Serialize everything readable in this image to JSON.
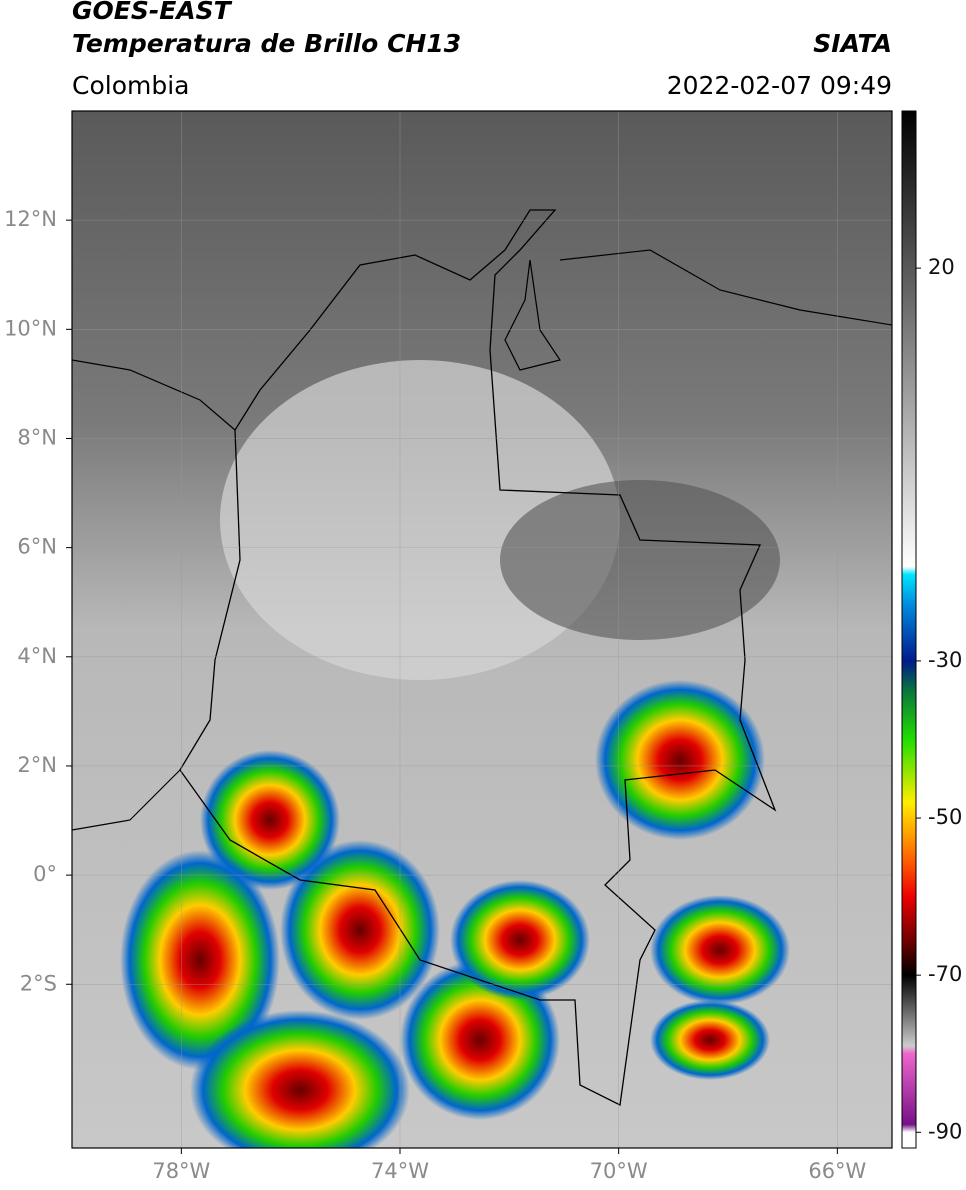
{
  "header": {
    "satellite": "GOES-EAST",
    "product": "Temperatura de Brillo CH13",
    "source": "SIATA",
    "region": "Colombia",
    "timestamp": "2022-02-07 09:49"
  },
  "map": {
    "xlim": [
      -80,
      -65
    ],
    "ylim": [
      -5,
      14
    ],
    "xticks": [
      {
        "value": -78,
        "label": "78°W"
      },
      {
        "value": -74,
        "label": "74°W"
      },
      {
        "value": -70,
        "label": "70°W"
      },
      {
        "value": -66,
        "label": "66°W"
      }
    ],
    "yticks": [
      {
        "value": 12,
        "label": "12°N"
      },
      {
        "value": 10,
        "label": "10°N"
      },
      {
        "value": 8,
        "label": "8°N"
      },
      {
        "value": 6,
        "label": "6°N"
      },
      {
        "value": 4,
        "label": "4°N"
      },
      {
        "value": 2,
        "label": "2°N"
      },
      {
        "value": 0,
        "label": "0°"
      },
      {
        "value": -2,
        "label": "2°S"
      }
    ],
    "grid": true
  },
  "colorbar": {
    "clim": [
      -92,
      40
    ],
    "ticks": [
      20,
      -30,
      -50,
      -70,
      -90
    ],
    "stops": [
      {
        "value": 40,
        "color": "#000000"
      },
      {
        "value": -18,
        "color": "#ffffff"
      },
      {
        "value": -19,
        "color": "#00e5ff"
      },
      {
        "value": -23,
        "color": "#0088dd"
      },
      {
        "value": -30,
        "color": "#001a8c"
      },
      {
        "value": -34,
        "color": "#0a7a3a"
      },
      {
        "value": -40,
        "color": "#22dd00"
      },
      {
        "value": -48,
        "color": "#ffee00"
      },
      {
        "value": -55,
        "color": "#ff6600"
      },
      {
        "value": -60,
        "color": "#ee0000"
      },
      {
        "value": -66,
        "color": "#660000"
      },
      {
        "value": -70,
        "color": "#000000"
      },
      {
        "value": -79,
        "color": "#cccccc"
      },
      {
        "value": -80,
        "color": "#ee66cc"
      },
      {
        "value": -89,
        "color": "#771188"
      },
      {
        "value": -90,
        "color": "#ffffff"
      },
      {
        "value": -92,
        "color": "#ffffff"
      }
    ]
  }
}
